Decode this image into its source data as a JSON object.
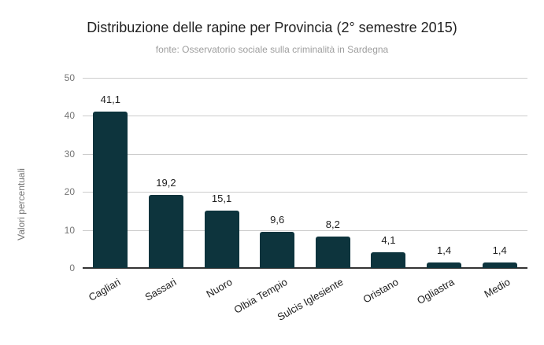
{
  "title": "Distribuzione delle rapine per Provincia (2° semestre 2015)",
  "subtitle": "fonte: Osservatorio sociale sulla criminalità in Sardegna",
  "colors": {
    "bar": "#0d343d",
    "gridline": "#cccccc",
    "axis_line": "#333333",
    "tick_text": "#757575",
    "title_text": "#212121",
    "subtitle_text": "#9e9e9e",
    "background": "#ffffff"
  },
  "chart_data": {
    "type": "bar",
    "title": "Distribuzione delle rapine per Provincia (2° semestre 2015)",
    "subtitle": "fonte: Osservatorio sociale sulla criminalità in Sardegna",
    "xlabel": "",
    "ylabel": "Valori percentuali",
    "categories": [
      "Cagliari",
      "Sassari",
      "Nuoro",
      "Olbia Tempio",
      "Sulcis Iglesiente",
      "Oristano",
      "Ogliastra",
      "Medio"
    ],
    "values": [
      41.1,
      19.2,
      15.1,
      9.6,
      8.2,
      4.1,
      1.4,
      1.4
    ],
    "value_labels": [
      "41,1",
      "19,2",
      "15,1",
      "9,6",
      "8,2",
      "4,1",
      "1,4",
      "1,4"
    ],
    "ylim": [
      0,
      50
    ],
    "yticks": [
      0,
      10,
      20,
      30,
      40,
      50
    ],
    "grid": true,
    "legend": "none"
  }
}
